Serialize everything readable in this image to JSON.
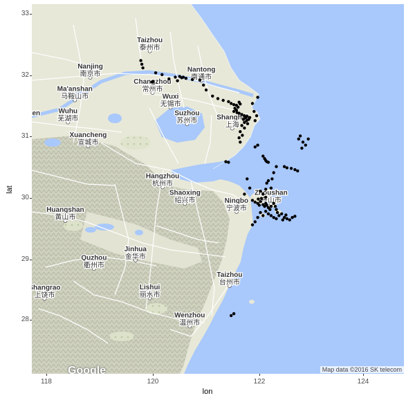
{
  "axes": {
    "x_title": "lon",
    "y_title": "lat",
    "x_ticks": [
      "118",
      "120",
      "122",
      "124"
    ],
    "y_ticks": [
      "33",
      "32",
      "31",
      "30",
      "29",
      "28"
    ]
  },
  "map": {
    "attribution": "Map data ©2016 SK telecom",
    "logo": "Google",
    "colors": {
      "water": "#a9c8fb",
      "land": "#e7e8d8",
      "terrain": "#c9cbb8",
      "roads": "#ffffff",
      "points": "#000000"
    },
    "cities": [
      {
        "en": "Taizhou",
        "zh": "泰州市",
        "lon": 119.92,
        "lat": 32.49
      },
      {
        "en": "Nanjing",
        "zh": "南京市",
        "lon": 118.8,
        "lat": 32.06
      },
      {
        "en": "Nantong",
        "zh": "南通市",
        "lon": 120.89,
        "lat": 32.01
      },
      {
        "en": "Changzhou",
        "zh": "常州市",
        "lon": 119.97,
        "lat": 31.81
      },
      {
        "en": "Ma'anshan",
        "zh": "马鞍山市",
        "lon": 118.51,
        "lat": 31.69
      },
      {
        "en": "Wuxi",
        "zh": "无锡市",
        "lon": 120.31,
        "lat": 31.57
      },
      {
        "en": "Wuhu",
        "zh": "芜湖市",
        "lon": 118.38,
        "lat": 31.33
      },
      {
        "en": "Shanghai",
        "zh": "上海",
        "lon": 121.47,
        "lat": 31.23
      },
      {
        "en": "Xuancheng",
        "zh": "宣城市",
        "lon": 118.76,
        "lat": 30.94
      },
      {
        "en": "Suzhou",
        "zh": "苏州市",
        "lon": 120.62,
        "lat": 31.3
      },
      {
        "en": "Hangzhou",
        "zh": "杭州市",
        "lon": 120.16,
        "lat": 30.27
      },
      {
        "en": "Shaoxing",
        "zh": "绍兴市",
        "lon": 120.58,
        "lat": 30.0
      },
      {
        "en": "Ningbo",
        "zh": "宁波市",
        "lon": 121.55,
        "lat": 29.87
      },
      {
        "en": "Zhoushan",
        "zh": "舟山市",
        "lon": 122.2,
        "lat": 30.0
      },
      {
        "en": "Huangshan",
        "zh": "黄山市",
        "lon": 118.33,
        "lat": 29.72
      },
      {
        "en": "Jinhua",
        "zh": "金华市",
        "lon": 119.65,
        "lat": 29.08
      },
      {
        "en": "Quzhou",
        "zh": "衢州市",
        "lon": 118.87,
        "lat": 28.94
      },
      {
        "en": "Taizhou",
        "zh": "台州市",
        "lon": 121.42,
        "lat": 28.66
      },
      {
        "en": "Shangrao",
        "zh": "上饶市",
        "lon": 117.94,
        "lat": 28.45
      },
      {
        "en": "Lishui",
        "zh": "丽水市",
        "lon": 119.92,
        "lat": 28.46
      },
      {
        "en": "Wenzhou",
        "zh": "温州市",
        "lon": 120.67,
        "lat": 28.0
      },
      {
        "en": "Jingdezhen",
        "zh": "",
        "lon": 117.5,
        "lat": 31.3
      }
    ]
  },
  "chart_data": {
    "type": "scatter",
    "xlabel": "lon",
    "ylabel": "lat",
    "xlim": [
      117.7,
      124.7
    ],
    "ylim": [
      27.17,
      33.2
    ],
    "grid": false,
    "x_ticks": [
      118,
      120,
      122,
      124
    ],
    "y_ticks": [
      28,
      29,
      30,
      31,
      32,
      33
    ],
    "points": [
      [
        119.75,
        32.28
      ],
      [
        119.77,
        32.22
      ],
      [
        119.79,
        32.16
      ],
      [
        120.03,
        32.08
      ],
      [
        120.15,
        32.05
      ],
      [
        120.28,
        31.98
      ],
      [
        120.4,
        32.01
      ],
      [
        120.48,
        32.02
      ],
      [
        120.55,
        32.01
      ],
      [
        120.6,
        31.99
      ],
      [
        120.72,
        31.97
      ],
      [
        120.86,
        31.96
      ],
      [
        120.93,
        31.88
      ],
      [
        120.98,
        31.8
      ],
      [
        119.96,
        31.93
      ],
      [
        119.98,
        31.94
      ],
      [
        120.44,
        31.95
      ],
      [
        120.52,
        32.0
      ],
      [
        121.1,
        31.7
      ],
      [
        121.2,
        31.66
      ],
      [
        121.3,
        31.63
      ],
      [
        121.4,
        31.61
      ],
      [
        121.45,
        31.58
      ],
      [
        121.5,
        31.56
      ],
      [
        121.55,
        31.55
      ],
      [
        121.58,
        31.52
      ],
      [
        121.6,
        31.6
      ],
      [
        121.62,
        31.57
      ],
      [
        121.52,
        31.5
      ],
      [
        121.55,
        31.47
      ],
      [
        121.5,
        31.45
      ],
      [
        121.56,
        31.43
      ],
      [
        121.6,
        31.42
      ],
      [
        121.65,
        31.4
      ],
      [
        121.7,
        31.38
      ],
      [
        121.72,
        31.35
      ],
      [
        121.75,
        31.37
      ],
      [
        121.78,
        31.32
      ],
      [
        121.8,
        31.35
      ],
      [
        121.74,
        31.3
      ],
      [
        121.7,
        31.27
      ],
      [
        121.76,
        31.25
      ],
      [
        121.68,
        31.32
      ],
      [
        121.65,
        31.22
      ],
      [
        121.7,
        31.18
      ],
      [
        121.62,
        31.12
      ],
      [
        121.66,
        31.06
      ],
      [
        121.6,
        31.02
      ],
      [
        121.62,
        30.95
      ],
      [
        121.95,
        31.68
      ],
      [
        121.85,
        31.58
      ],
      [
        121.88,
        31.45
      ],
      [
        121.93,
        31.38
      ],
      [
        121.9,
        31.3
      ],
      [
        122.05,
        30.72
      ],
      [
        122.08,
        30.68
      ],
      [
        122.1,
        30.65
      ],
      [
        122.12,
        30.63
      ],
      [
        122.15,
        30.62
      ],
      [
        122.3,
        30.55
      ],
      [
        122.45,
        30.55
      ],
      [
        122.5,
        30.53
      ],
      [
        122.58,
        30.52
      ],
      [
        122.65,
        30.5
      ],
      [
        122.7,
        30.48
      ],
      [
        122.25,
        30.45
      ],
      [
        121.9,
        30.87
      ],
      [
        121.95,
        30.9
      ],
      [
        121.35,
        30.63
      ],
      [
        121.4,
        30.62
      ],
      [
        122.75,
        31.05
      ],
      [
        122.72,
        31.0
      ],
      [
        122.8,
        30.95
      ],
      [
        122.85,
        30.9
      ],
      [
        122.78,
        30.85
      ],
      [
        122.9,
        31.0
      ],
      [
        121.75,
        30.35
      ],
      [
        121.8,
        30.2
      ],
      [
        121.7,
        30.1
      ],
      [
        121.85,
        30.0
      ],
      [
        121.9,
        29.97
      ],
      [
        121.95,
        29.95
      ],
      [
        121.98,
        29.92
      ],
      [
        122.0,
        29.98
      ],
      [
        122.05,
        29.93
      ],
      [
        122.08,
        29.9
      ],
      [
        122.1,
        29.95
      ],
      [
        122.12,
        29.92
      ],
      [
        122.15,
        29.88
      ],
      [
        122.18,
        29.85
      ],
      [
        122.2,
        29.9
      ],
      [
        122.1,
        30.05
      ],
      [
        122.05,
        30.1
      ],
      [
        122.0,
        30.15
      ],
      [
        121.96,
        30.02
      ],
      [
        122.02,
        30.03
      ],
      [
        122.2,
        30.2
      ],
      [
        122.25,
        29.95
      ],
      [
        122.28,
        29.9
      ],
      [
        122.3,
        29.85
      ],
      [
        122.32,
        29.8
      ],
      [
        122.1,
        29.82
      ],
      [
        122.15,
        29.78
      ],
      [
        122.2,
        29.75
      ],
      [
        122.25,
        29.72
      ],
      [
        122.3,
        29.7
      ],
      [
        122.35,
        29.75
      ],
      [
        122.4,
        29.78
      ],
      [
        122.45,
        29.72
      ],
      [
        122.5,
        29.7
      ],
      [
        122.55,
        29.68
      ],
      [
        122.6,
        29.72
      ],
      [
        122.65,
        29.74
      ],
      [
        122.48,
        29.76
      ],
      [
        122.42,
        29.68
      ],
      [
        122.12,
        30.28
      ],
      [
        122.15,
        30.32
      ],
      [
        122.22,
        30.35
      ],
      [
        122.1,
        30.18
      ],
      [
        121.85,
        29.6
      ],
      [
        121.9,
        29.65
      ],
      [
        122.0,
        29.8
      ],
      [
        122.05,
        29.75
      ],
      [
        121.95,
        29.72
      ],
      [
        121.45,
        28.12
      ],
      [
        121.5,
        28.15
      ]
    ]
  }
}
